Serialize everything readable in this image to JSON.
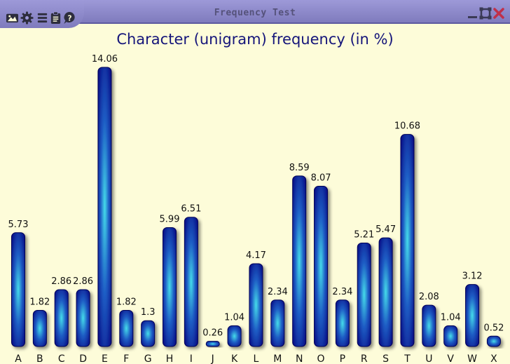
{
  "window": {
    "title": "Frequency Test",
    "toolbar_icons": [
      "image-icon",
      "gear-icon",
      "list-icon",
      "clipboard-icon",
      "help-icon"
    ],
    "control_icons": [
      "minimize-icon",
      "maximize-icon",
      "close-icon"
    ]
  },
  "colors": {
    "bar_dark": "#05058a",
    "bar_light": "#3fd6e6",
    "title_text": "#15157a",
    "background": "#fdfcd9",
    "titlebar": "#8a86c4"
  },
  "chart_data": {
    "type": "bar",
    "title": "Character (unigram) frequency (in %)",
    "xlabel": "",
    "ylabel": "",
    "ylim": [
      0,
      14.06
    ],
    "grid": false,
    "categories": [
      "A",
      "B",
      "C",
      "D",
      "E",
      "F",
      "G",
      "H",
      "I",
      "J",
      "K",
      "L",
      "M",
      "N",
      "O",
      "P",
      "R",
      "S",
      "T",
      "U",
      "V",
      "W",
      "X"
    ],
    "values": [
      5.73,
      1.82,
      2.86,
      2.86,
      14.06,
      1.82,
      1.3,
      5.99,
      6.51,
      0.26,
      1.04,
      4.17,
      2.34,
      8.59,
      8.07,
      2.34,
      5.21,
      5.47,
      10.68,
      2.08,
      1.04,
      3.12,
      0.52
    ],
    "labels": [
      "5.73",
      "1.82",
      "2.86",
      "2.86",
      "14.06",
      "1.82",
      "1.3",
      "5.99",
      "6.51",
      "0.26",
      "1.04",
      "4.17",
      "2.34",
      "8.59",
      "8.07",
      "2.34",
      "5.21",
      "5.47",
      "10.68",
      "2.08",
      "1.04",
      "3.12",
      "0.52"
    ]
  }
}
